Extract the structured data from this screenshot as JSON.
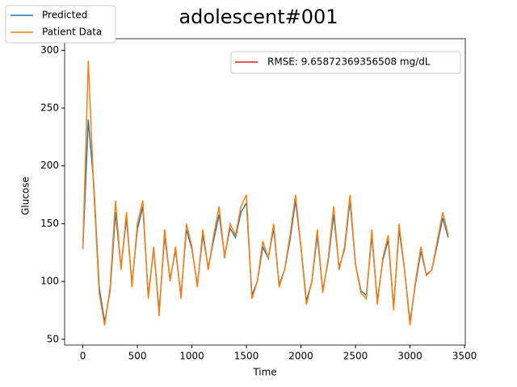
{
  "chart_data": {
    "type": "line",
    "title": "adolescent#001",
    "x_label": "Time",
    "y_label": "Glucose",
    "x": [
      0,
      50,
      100,
      150,
      200,
      250,
      300,
      350,
      400,
      450,
      500,
      550,
      600,
      650,
      700,
      750,
      800,
      850,
      900,
      950,
      1000,
      1050,
      1100,
      1150,
      1200,
      1250,
      1300,
      1350,
      1400,
      1450,
      1500,
      1550,
      1600,
      1650,
      1700,
      1750,
      1800,
      1850,
      1900,
      1950,
      2000,
      2050,
      2100,
      2150,
      2200,
      2250,
      2300,
      2350,
      2400,
      2450,
      2500,
      2550,
      2600,
      2650,
      2700,
      2750,
      2800,
      2850,
      2900,
      2950,
      3000,
      3050,
      3100,
      3150,
      3200,
      3250,
      3300,
      3350
    ],
    "series": [
      {
        "name": "Predicted",
        "color": "#1f77b4",
        "values": [
          128,
          240,
          185,
          95,
          65,
          92,
          160,
          112,
          155,
          98,
          145,
          165,
          88,
          128,
          74,
          140,
          102,
          127,
          88,
          145,
          128,
          97,
          140,
          112,
          136,
          158,
          122,
          146,
          138,
          160,
          168,
          88,
          100,
          130,
          120,
          146,
          97,
          110,
          136,
          170,
          130,
          83,
          100,
          140,
          92,
          118,
          158,
          112,
          128,
          170,
          115,
          92,
          88,
          140,
          83,
          118,
          136,
          78,
          145,
          110,
          65,
          98,
          126,
          106,
          110,
          132,
          155,
          138
        ]
      },
      {
        "name": "Patient Data",
        "color": "#ff7f0e",
        "values": [
          128,
          291,
          180,
          90,
          62,
          95,
          170,
          110,
          160,
          95,
          150,
          170,
          85,
          130,
          70,
          145,
          100,
          130,
          85,
          150,
          130,
          95,
          145,
          110,
          140,
          165,
          120,
          150,
          140,
          165,
          175,
          85,
          100,
          135,
          120,
          150,
          95,
          110,
          140,
          175,
          130,
          80,
          100,
          145,
          90,
          120,
          165,
          110,
          130,
          175,
          115,
          90,
          85,
          145,
          80,
          120,
          140,
          75,
          150,
          110,
          62,
          100,
          130,
          105,
          110,
          135,
          160,
          140
        ]
      }
    ],
    "legend_text": {
      "name": "RMSE: 9.65872369356508 mg/dL",
      "color": "#e41a1c"
    },
    "xlim": [
      -167,
      3507
    ],
    "ylim": [
      45,
      310
    ],
    "xticks": [
      0,
      500,
      1000,
      1500,
      2000,
      2500,
      3000,
      3500
    ],
    "yticks": [
      50,
      100,
      150,
      200,
      250,
      300
    ]
  }
}
